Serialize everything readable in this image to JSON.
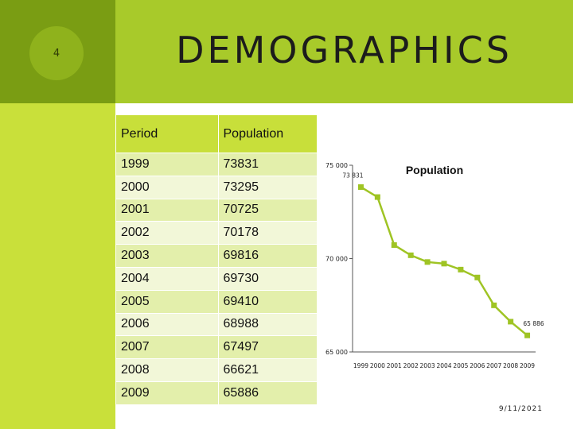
{
  "slide": {
    "number": "4",
    "title": "DEMOGRAPHICS",
    "date": "9/11/2021"
  },
  "table": {
    "headers": [
      "Period",
      "Population"
    ],
    "rows": [
      [
        "1999",
        "73831"
      ],
      [
        "2000",
        "73295"
      ],
      [
        "2001",
        "70725"
      ],
      [
        "2002",
        "70178"
      ],
      [
        "2003",
        "69816"
      ],
      [
        "2004",
        "69730"
      ],
      [
        "2005",
        "69410"
      ],
      [
        "2006",
        "68988"
      ],
      [
        "2007",
        "67497"
      ],
      [
        "2008",
        "66621"
      ],
      [
        "2009",
        "65886"
      ]
    ]
  },
  "chart_data": {
    "type": "line",
    "title": "Population",
    "categories": [
      "1999",
      "2000",
      "2001",
      "2002",
      "2003",
      "2004",
      "2005",
      "2006",
      "2007",
      "2008",
      "2009"
    ],
    "series": [
      {
        "name": "Population",
        "values": [
          73831,
          73295,
          70725,
          70178,
          69816,
          69730,
          69410,
          68988,
          67497,
          66621,
          65886
        ]
      }
    ],
    "ylim": [
      65000,
      75000
    ],
    "yticks": [
      65000,
      70000,
      75000
    ],
    "ytick_labels": [
      "65 000",
      "70 000",
      "75 000"
    ],
    "data_labels": [
      {
        "index": 0,
        "text": "73 831"
      },
      {
        "index": 10,
        "text": "65 886"
      }
    ],
    "grid": false,
    "legend": "none",
    "line_color": "#9fc424"
  }
}
